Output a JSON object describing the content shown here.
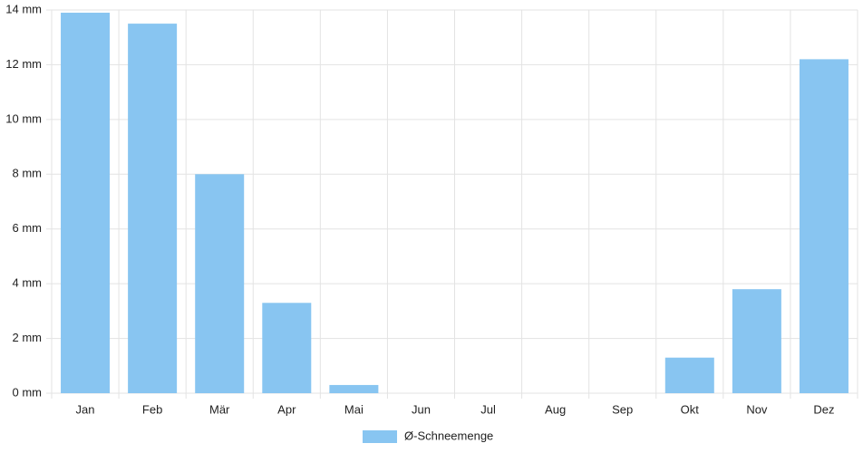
{
  "chart_data": {
    "type": "bar",
    "categories": [
      "Jan",
      "Feb",
      "Mär",
      "Apr",
      "Mai",
      "Jun",
      "Jul",
      "Aug",
      "Sep",
      "Okt",
      "Nov",
      "Dez"
    ],
    "series": [
      {
        "name": "Ø-Schneemenge",
        "color": "#88c5f1",
        "values": [
          13.9,
          13.5,
          8.0,
          3.3,
          0.3,
          0,
          0,
          0,
          0,
          1.3,
          3.8,
          12.2
        ]
      }
    ],
    "ylim": [
      0,
      14
    ],
    "yticks": [
      {
        "value": 0,
        "label": "0 mm"
      },
      {
        "value": 2,
        "label": "2 mm"
      },
      {
        "value": 4,
        "label": "4 mm"
      },
      {
        "value": 6,
        "label": "6 mm"
      },
      {
        "value": 8,
        "label": "8 mm"
      },
      {
        "value": 10,
        "label": "10 mm"
      },
      {
        "value": 12,
        "label": "12 mm"
      },
      {
        "value": 14,
        "label": "14 mm"
      }
    ],
    "grid": true,
    "legend": "bottom"
  }
}
